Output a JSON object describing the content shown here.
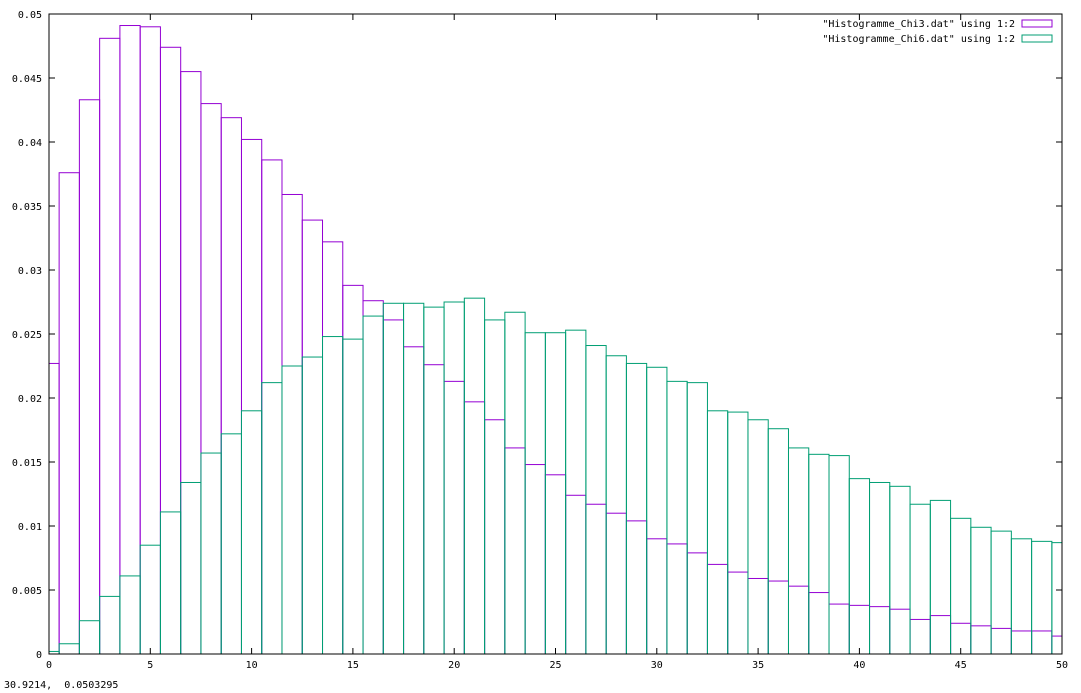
{
  "status_readout": "30.9214,  0.0503295",
  "colors": {
    "series0": "#9400d3",
    "series1": "#009e73",
    "axis": "#000000"
  },
  "chart_data": {
    "type": "bar",
    "title": "",
    "xlabel": "",
    "ylabel": "",
    "xlim": [
      0,
      50
    ],
    "ylim": [
      0,
      0.05
    ],
    "grid": false,
    "legend_position": "top-right",
    "bin_width": 1,
    "x_ticks": [
      0,
      5,
      10,
      15,
      20,
      25,
      30,
      35,
      40,
      45,
      50
    ],
    "x_tick_labels": [
      "0",
      "5",
      "10",
      "15",
      "20",
      "25",
      "30",
      "35",
      "40",
      "45",
      "50"
    ],
    "y_ticks": [
      0,
      0.005,
      0.01,
      0.015,
      0.02,
      0.025,
      0.03,
      0.035,
      0.04,
      0.045,
      0.05
    ],
    "y_tick_labels": [
      "0",
      "0.005",
      "0.01",
      "0.015",
      "0.02",
      "0.025",
      "0.03",
      "0.035",
      "0.04",
      "0.045",
      "0.05"
    ],
    "x": [
      0,
      1,
      2,
      3,
      4,
      5,
      6,
      7,
      8,
      9,
      10,
      11,
      12,
      13,
      14,
      15,
      16,
      17,
      18,
      19,
      20,
      21,
      22,
      23,
      24,
      25,
      26,
      27,
      28,
      29,
      30,
      31,
      32,
      33,
      34,
      35,
      36,
      37,
      38,
      39,
      40,
      41,
      42,
      43,
      44,
      45,
      46,
      47,
      48,
      49,
      50
    ],
    "series": [
      {
        "name": "\"Histogramme_Chi3.dat\" using 1:2",
        "values": [
          0.0227,
          0.0376,
          0.0433,
          0.0481,
          0.0491,
          0.049,
          0.0474,
          0.0455,
          0.043,
          0.0419,
          0.0402,
          0.0386,
          0.0359,
          0.0339,
          0.0322,
          0.0288,
          0.0276,
          0.0261,
          0.024,
          0.0226,
          0.0213,
          0.0197,
          0.0183,
          0.0161,
          0.0148,
          0.014,
          0.0124,
          0.0117,
          0.011,
          0.0104,
          0.009,
          0.0086,
          0.0079,
          0.007,
          0.0064,
          0.0059,
          0.0057,
          0.0053,
          0.0048,
          0.0039,
          0.0038,
          0.0037,
          0.0035,
          0.0027,
          0.003,
          0.0024,
          0.0022,
          0.002,
          0.0018,
          0.0018,
          0.0014
        ]
      },
      {
        "name": "\"Histogramme_Chi6.dat\" using 1:2",
        "values": [
          0.0002,
          0.0008,
          0.0026,
          0.0045,
          0.0061,
          0.0085,
          0.0111,
          0.0134,
          0.0157,
          0.0172,
          0.019,
          0.0212,
          0.0225,
          0.0232,
          0.0248,
          0.0246,
          0.0264,
          0.0274,
          0.0274,
          0.0271,
          0.0275,
          0.0278,
          0.0261,
          0.0267,
          0.0251,
          0.0251,
          0.0253,
          0.0241,
          0.0233,
          0.0227,
          0.0224,
          0.0213,
          0.0212,
          0.019,
          0.0189,
          0.0183,
          0.0176,
          0.0161,
          0.0156,
          0.0155,
          0.0137,
          0.0134,
          0.0131,
          0.0117,
          0.012,
          0.0106,
          0.0099,
          0.0096,
          0.009,
          0.0088,
          0.0087
        ]
      }
    ]
  }
}
